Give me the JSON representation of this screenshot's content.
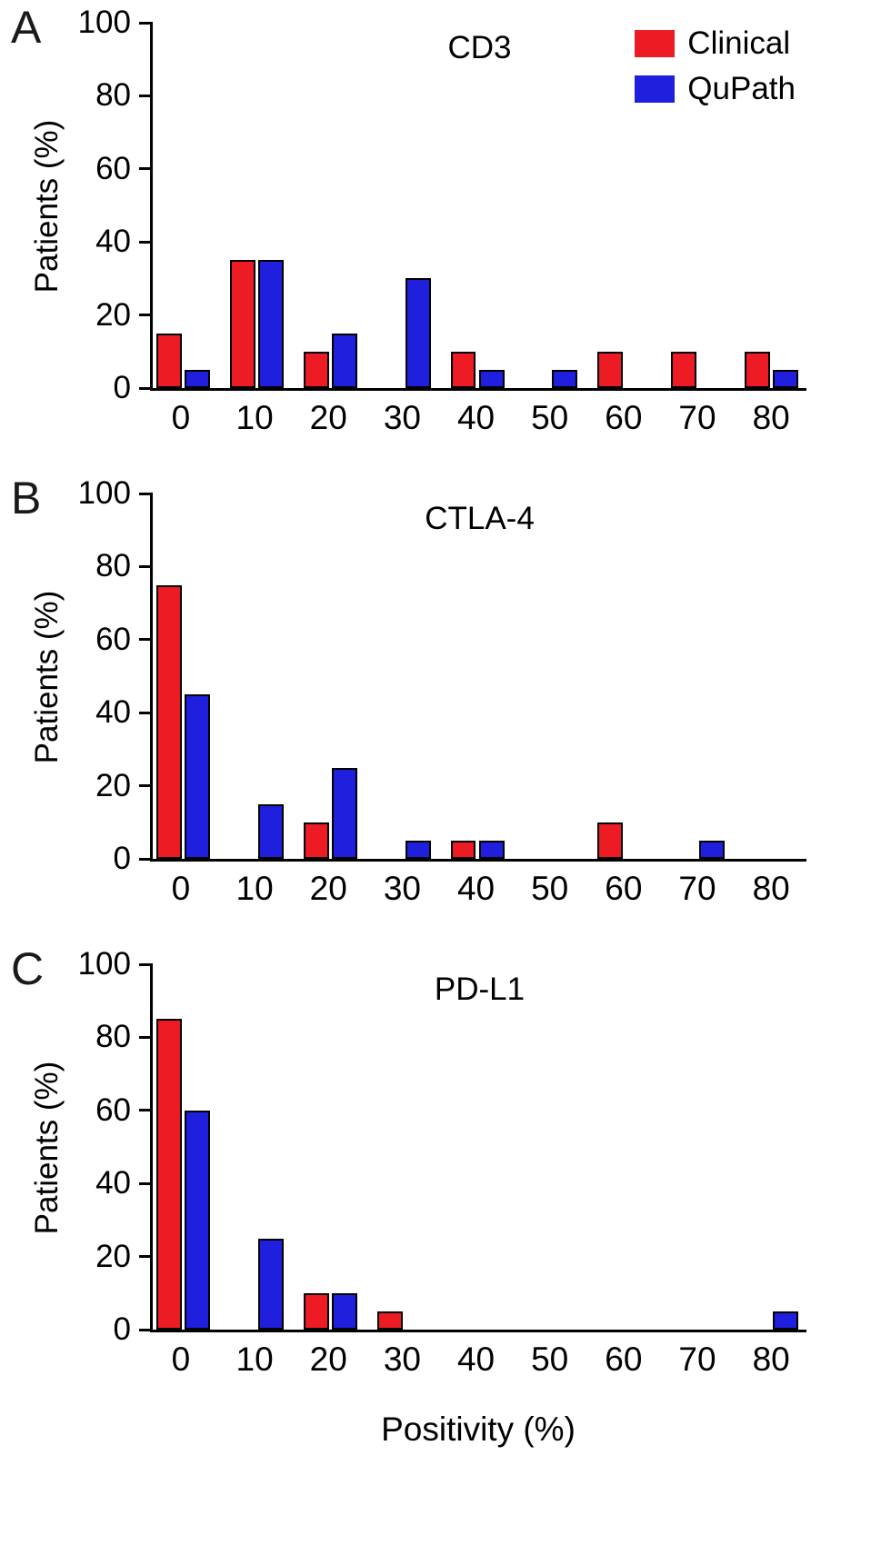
{
  "panels": [
    {
      "letter": "A"
    },
    {
      "letter": "B"
    },
    {
      "letter": "C"
    }
  ],
  "chart_data": [
    {
      "type": "bar",
      "title": "CD3",
      "xlabel": "",
      "ylabel": "Patients (%)",
      "ylim": [
        0,
        100
      ],
      "yticks": [
        0,
        20,
        40,
        60,
        80,
        100
      ],
      "categories": [
        0,
        10,
        20,
        30,
        40,
        50,
        60,
        70,
        80
      ],
      "grid": false,
      "legend_position": "top-right",
      "series": [
        {
          "name": "Clinical",
          "color": "#ed1c24",
          "values": [
            15,
            35,
            10,
            0,
            10,
            0,
            10,
            10,
            10
          ]
        },
        {
          "name": "QuPath",
          "color": "#1f1fdd",
          "values": [
            5,
            35,
            15,
            30,
            5,
            5,
            0,
            0,
            5
          ]
        }
      ]
    },
    {
      "type": "bar",
      "title": "CTLA-4",
      "xlabel": "",
      "ylabel": "Patients (%)",
      "ylim": [
        0,
        100
      ],
      "yticks": [
        0,
        20,
        40,
        60,
        80,
        100
      ],
      "categories": [
        0,
        10,
        20,
        30,
        40,
        50,
        60,
        70,
        80
      ],
      "grid": false,
      "legend_position": "none",
      "series": [
        {
          "name": "Clinical",
          "color": "#ed1c24",
          "values": [
            75,
            0,
            10,
            0,
            5,
            0,
            10,
            0,
            0
          ]
        },
        {
          "name": "QuPath",
          "color": "#1f1fdd",
          "values": [
            45,
            15,
            25,
            5,
            5,
            0,
            0,
            5,
            0
          ]
        }
      ]
    },
    {
      "type": "bar",
      "title": "PD-L1",
      "xlabel": "Positivity (%)",
      "ylabel": "Patients (%)",
      "ylim": [
        0,
        100
      ],
      "yticks": [
        0,
        20,
        40,
        60,
        80,
        100
      ],
      "categories": [
        0,
        10,
        20,
        30,
        40,
        50,
        60,
        70,
        80
      ],
      "grid": false,
      "legend_position": "none",
      "series": [
        {
          "name": "Clinical",
          "color": "#ed1c24",
          "values": [
            85,
            0,
            10,
            5,
            0,
            0,
            0,
            0,
            0
          ]
        },
        {
          "name": "QuPath",
          "color": "#1f1fdd",
          "values": [
            60,
            25,
            10,
            0,
            0,
            0,
            0,
            0,
            5
          ]
        }
      ]
    }
  ]
}
